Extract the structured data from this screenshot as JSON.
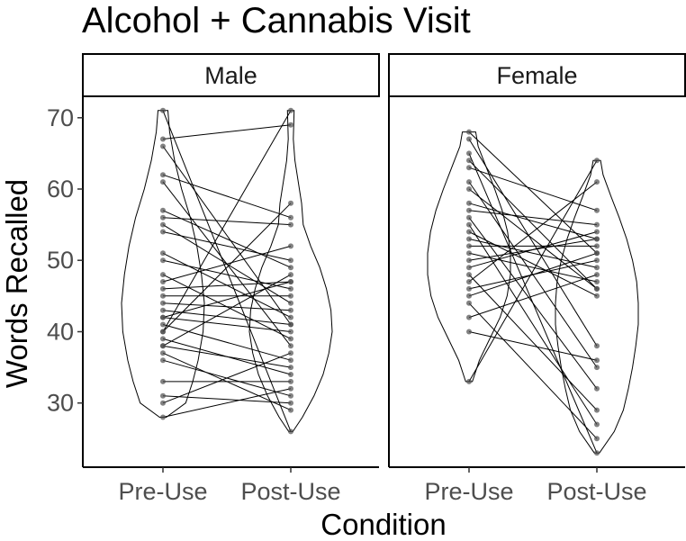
{
  "chart_data": {
    "type": "violin-paired-scatter",
    "title": "Alcohol + Cannabis Visit",
    "xlabel": "Condition",
    "ylabel": "Words Recalled",
    "categories": [
      "Pre-Use",
      "Post-Use"
    ],
    "yticks": [
      30,
      40,
      50,
      60,
      70
    ],
    "ylim": [
      21,
      73
    ],
    "grid": false,
    "legend": "none",
    "colors": {
      "point": "#4d4d4d",
      "line": "#000000",
      "outline": "#000000",
      "strip_fill": "#ffffff"
    },
    "panels": [
      {
        "name": "Male",
        "violin": {
          "pre": [
            [
              28,
              0.08
            ],
            [
              30,
              0.55
            ],
            [
              33,
              0.72
            ],
            [
              36,
              0.85
            ],
            [
              40,
              0.97
            ],
            [
              44,
              1.0
            ],
            [
              48,
              0.93
            ],
            [
              52,
              0.82
            ],
            [
              56,
              0.66
            ],
            [
              60,
              0.45
            ],
            [
              64,
              0.28
            ],
            [
              68,
              0.16
            ],
            [
              71,
              0.12
            ]
          ],
          "post": [
            [
              26,
              0.05
            ],
            [
              28,
              0.28
            ],
            [
              31,
              0.56
            ],
            [
              34,
              0.78
            ],
            [
              37,
              0.92
            ],
            [
              40,
              1.0
            ],
            [
              43,
              0.97
            ],
            [
              46,
              0.86
            ],
            [
              49,
              0.7
            ],
            [
              52,
              0.48
            ],
            [
              55,
              0.3
            ],
            [
              58,
              0.26
            ],
            [
              61,
              0.18
            ],
            [
              64,
              0.1
            ],
            [
              67,
              0.06
            ],
            [
              71,
              0.08
            ]
          ]
        },
        "pairs": [
          [
            71,
            26
          ],
          [
            67,
            69
          ],
          [
            66,
            41
          ],
          [
            62,
            56
          ],
          [
            61,
            38
          ],
          [
            57,
            49
          ],
          [
            56,
            55
          ],
          [
            55,
            44
          ],
          [
            54,
            50
          ],
          [
            51,
            42
          ],
          [
            50,
            46
          ],
          [
            48,
            39
          ],
          [
            47,
            52
          ],
          [
            46,
            47
          ],
          [
            45,
            45
          ],
          [
            44,
            43
          ],
          [
            43,
            41
          ],
          [
            42,
            40
          ],
          [
            42,
            47
          ],
          [
            41,
            36
          ],
          [
            40,
            58
          ],
          [
            40,
            71
          ],
          [
            39,
            34
          ],
          [
            38,
            35
          ],
          [
            38,
            48
          ],
          [
            37,
            29
          ],
          [
            36,
            31
          ],
          [
            33,
            33
          ],
          [
            31,
            30
          ],
          [
            30,
            37
          ],
          [
            28,
            32
          ]
        ]
      },
      {
        "name": "Female",
        "violin": {
          "pre": [
            [
              33,
              0.08
            ],
            [
              36,
              0.25
            ],
            [
              39,
              0.5
            ],
            [
              42,
              0.75
            ],
            [
              45,
              0.92
            ],
            [
              48,
              1.0
            ],
            [
              51,
              1.0
            ],
            [
              54,
              0.93
            ],
            [
              57,
              0.8
            ],
            [
              60,
              0.62
            ],
            [
              63,
              0.42
            ],
            [
              66,
              0.22
            ],
            [
              68,
              0.16
            ]
          ],
          "post": [
            [
              23,
              0.06
            ],
            [
              26,
              0.42
            ],
            [
              29,
              0.64
            ],
            [
              32,
              0.76
            ],
            [
              35,
              0.86
            ],
            [
              38,
              0.94
            ],
            [
              41,
              1.0
            ],
            [
              44,
              1.0
            ],
            [
              47,
              0.96
            ],
            [
              50,
              0.86
            ],
            [
              53,
              0.72
            ],
            [
              56,
              0.54
            ],
            [
              59,
              0.34
            ],
            [
              62,
              0.15
            ],
            [
              64,
              0.09
            ]
          ]
        },
        "pairs": [
          [
            68,
            51
          ],
          [
            67,
            38
          ],
          [
            65,
            23
          ],
          [
            64,
            46
          ],
          [
            63,
            57
          ],
          [
            61,
            35
          ],
          [
            60,
            46
          ],
          [
            58,
            53
          ],
          [
            57,
            55
          ],
          [
            56,
            32
          ],
          [
            55,
            27
          ],
          [
            54,
            45
          ],
          [
            53,
            49
          ],
          [
            52,
            52
          ],
          [
            51,
            47
          ],
          [
            50,
            53
          ],
          [
            49,
            54
          ],
          [
            48,
            29
          ],
          [
            47,
            61
          ],
          [
            46,
            50
          ],
          [
            45,
            51
          ],
          [
            44,
            25
          ],
          [
            42,
            48
          ],
          [
            40,
            36
          ],
          [
            33,
            64
          ]
        ]
      }
    ]
  }
}
